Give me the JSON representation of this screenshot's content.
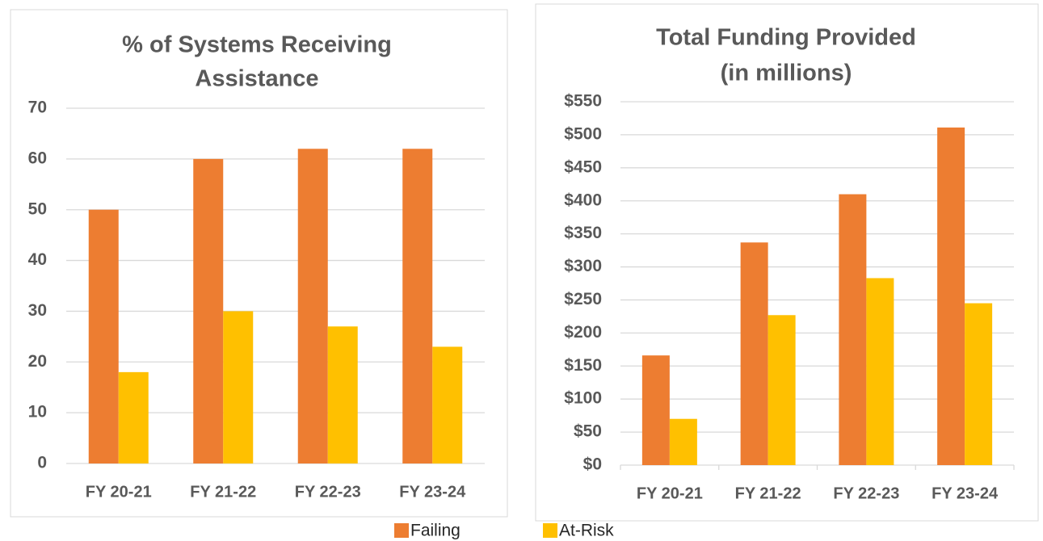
{
  "chart_data": [
    {
      "type": "bar",
      "title": [
        "% of Systems Receiving",
        "Assistance"
      ],
      "categories": [
        "FY 20-21",
        "FY 21-22",
        "FY 22-23",
        "FY 23-24"
      ],
      "series": [
        {
          "name": "Failing",
          "color": "#ED7D31",
          "values": [
            50,
            60,
            62,
            62
          ]
        },
        {
          "name": "At-Risk",
          "color": "#FFC000",
          "values": [
            18,
            30,
            27,
            23
          ]
        }
      ],
      "ylim": [
        0,
        70
      ],
      "yticks": [
        0,
        10,
        20,
        30,
        40,
        50,
        60,
        70
      ],
      "grid": true
    },
    {
      "type": "bar",
      "title": [
        "Total Funding Provided",
        "(in millions)"
      ],
      "categories": [
        "FY 20-21",
        "FY 21-22",
        "FY 22-23",
        "FY 23-24"
      ],
      "series": [
        {
          "color": "#ED7D31",
          "values": [
            166,
            337,
            410,
            511
          ]
        },
        {
          "color": "#FFC000",
          "values": [
            70,
            227,
            283,
            245
          ]
        }
      ],
      "ylim": [
        0,
        550
      ],
      "yticks": [
        {
          "value": 0,
          "label": "$0"
        },
        {
          "value": 50,
          "label": "$50"
        },
        {
          "value": 100,
          "label": "$100"
        },
        {
          "value": 150,
          "label": "$150"
        },
        {
          "value": 200,
          "label": "$200"
        },
        {
          "value": 250,
          "label": "$250"
        },
        {
          "value": 300,
          "label": "$300"
        },
        {
          "value": 350,
          "label": "$350"
        },
        {
          "value": 400,
          "label": "$400"
        },
        {
          "value": 450,
          "label": "$450"
        },
        {
          "value": 500,
          "label": "$500"
        },
        {
          "value": 550,
          "label": "$550"
        }
      ],
      "grid": true
    }
  ]
}
